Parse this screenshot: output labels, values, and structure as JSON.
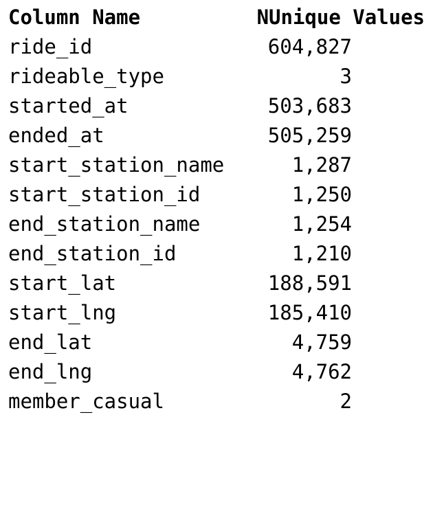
{
  "table": {
    "columns": [
      "Column Name",
      "NUnique Values"
    ],
    "rows": [
      {
        "name": "ride_id",
        "value": "604,827"
      },
      {
        "name": "rideable_type",
        "value": "3"
      },
      {
        "name": "started_at",
        "value": "503,683"
      },
      {
        "name": "ended_at",
        "value": "505,259"
      },
      {
        "name": "start_station_name",
        "value": "1,287"
      },
      {
        "name": "start_station_id",
        "value": "1,250"
      },
      {
        "name": "end_station_name",
        "value": "1,254"
      },
      {
        "name": "end_station_id",
        "value": "1,210"
      },
      {
        "name": "start_lat",
        "value": "188,591"
      },
      {
        "name": "start_lng",
        "value": "185,410"
      },
      {
        "name": "end_lat",
        "value": "4,759"
      },
      {
        "name": "end_lng",
        "value": "4,762"
      },
      {
        "name": "member_casual",
        "value": "2"
      }
    ]
  }
}
